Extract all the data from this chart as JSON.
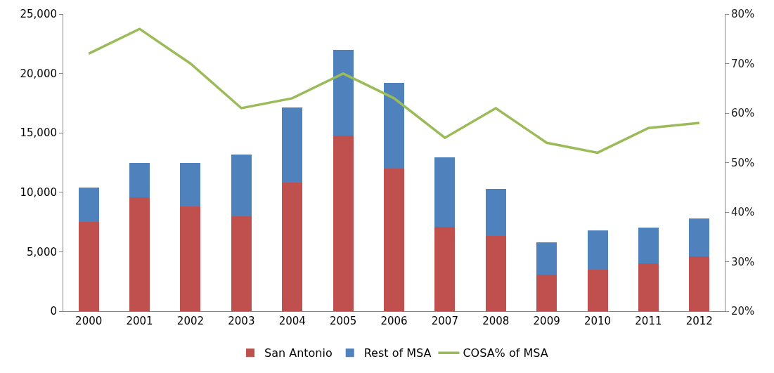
{
  "chart_data": {
    "type": "bar",
    "stacked": true,
    "categories": [
      "2000",
      "2001",
      "2002",
      "2003",
      "2004",
      "2005",
      "2006",
      "2007",
      "2008",
      "2009",
      "2010",
      "2011",
      "2012"
    ],
    "series": [
      {
        "name": "San Antonio",
        "color": "#c0504d",
        "values": [
          7500,
          9600,
          8800,
          8000,
          10800,
          14800,
          12000,
          7100,
          6300,
          3100,
          3500,
          4000,
          4600
        ]
      },
      {
        "name": "Rest of MSA",
        "color": "#4f81bd",
        "values": [
          2900,
          2850,
          3650,
          5200,
          6350,
          7200,
          7200,
          5850,
          4000,
          2700,
          3300,
          3050,
          3200
        ]
      },
      {
        "name": "COSA% of MSA",
        "color": "#9bbb59",
        "type": "line",
        "axis": "y2",
        "values": [
          72,
          77,
          70,
          61,
          63,
          68,
          63,
          55,
          61,
          54,
          52,
          57,
          58
        ]
      }
    ],
    "ylim": [
      0,
      25000
    ],
    "yticks": [
      {
        "value": 0,
        "label": "0"
      },
      {
        "value": 5000,
        "label": "5,000"
      },
      {
        "value": 10000,
        "label": "10,000"
      },
      {
        "value": 15000,
        "label": "15,000"
      },
      {
        "value": 20000,
        "label": "20,000"
      },
      {
        "value": 25000,
        "label": "25,000"
      }
    ],
    "y2lim": [
      20,
      80
    ],
    "y2ticks": [
      {
        "value": 20,
        "label": "20%"
      },
      {
        "value": 30,
        "label": "30%"
      },
      {
        "value": 40,
        "label": "40%"
      },
      {
        "value": 50,
        "label": "50%"
      },
      {
        "value": 60,
        "label": "60%"
      },
      {
        "value": 70,
        "label": "70%"
      },
      {
        "value": 80,
        "label": "80%"
      }
    ],
    "legend": "bottom",
    "marker": "none"
  }
}
